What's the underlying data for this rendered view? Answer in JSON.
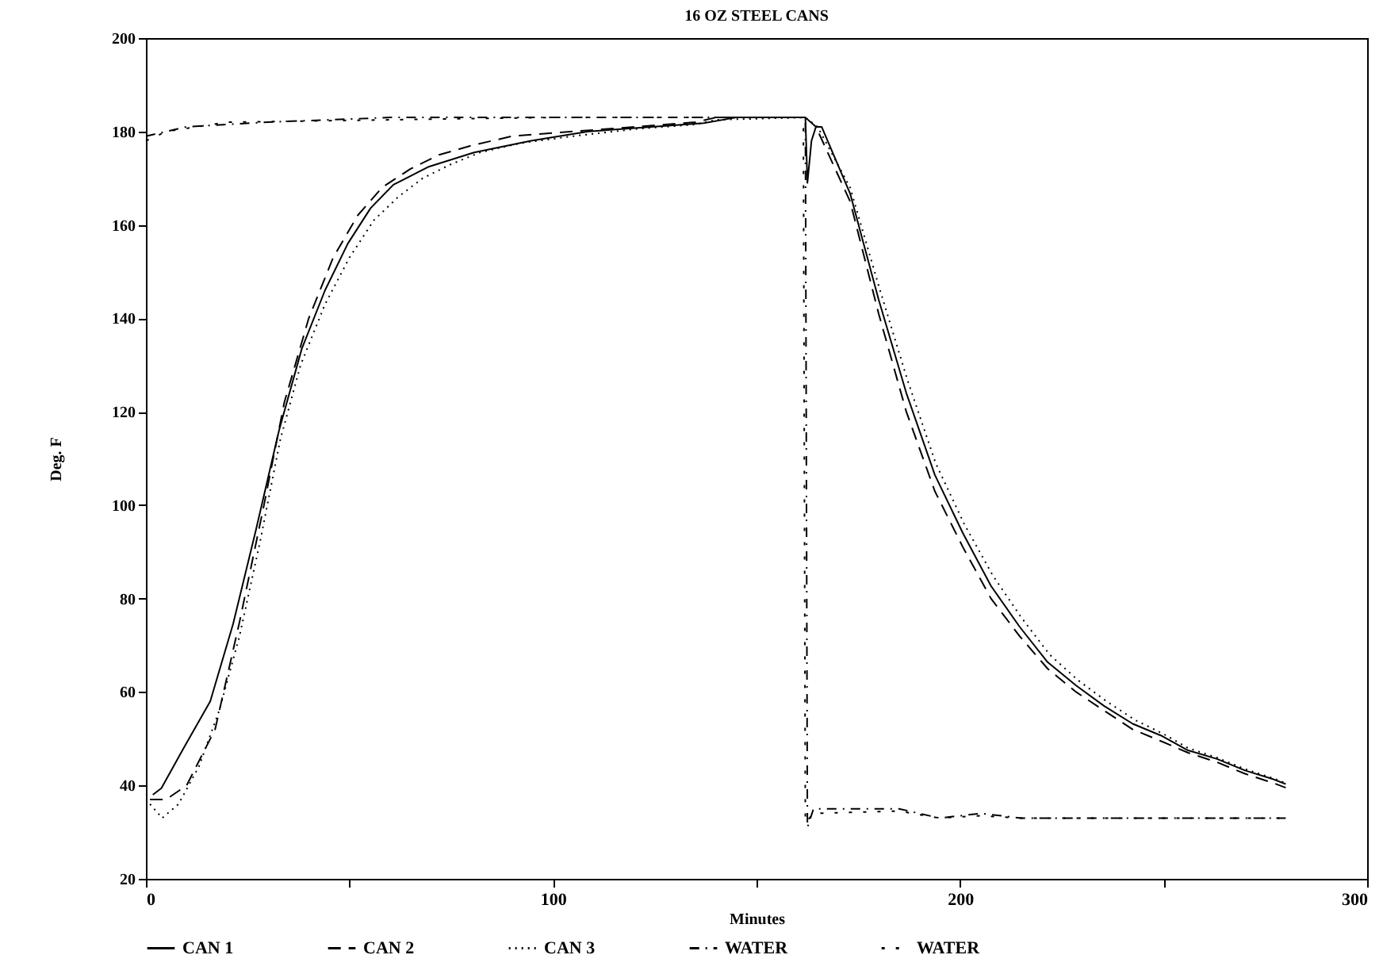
{
  "chart_data": {
    "type": "line",
    "title": "16 OZ STEEL CANS",
    "xlabel": "Minutes",
    "ylabel": "Deg. F",
    "xlim": [
      0,
      300
    ],
    "xticks": [
      0,
      {
        "value": 50,
        "label": null
      },
      100,
      {
        "value": 150,
        "label": null
      },
      200,
      {
        "value": 250,
        "label": null
      },
      300
    ],
    "ylim": [
      20,
      200
    ],
    "yticks": [
      20,
      40,
      60,
      80,
      100,
      120,
      140,
      160,
      180,
      200
    ],
    "grid": false,
    "legend": "bottom",
    "marker": "none",
    "series": [
      {
        "name": "CAN 1",
        "color": "#000000",
        "line_style": "solid",
        "x": [
          1.7,
          3.8,
          9.4,
          15.8,
          21.4,
          27,
          32.7,
          38.3,
          44,
          49.6,
          55.2,
          60.8,
          69.3,
          80.6,
          94.6,
          108.7,
          137,
          145,
          162,
          162.5,
          163.5,
          164.6,
          166,
          173,
          180,
          186.8,
          193.8,
          200.7,
          207.6,
          214.6,
          221.5,
          228.5,
          235.4,
          242.4,
          249.3,
          256,
          263,
          270,
          277,
          280
        ],
        "values": [
          38,
          39.4,
          48.2,
          58,
          74.5,
          94.6,
          116,
          133.5,
          146,
          156,
          163.6,
          168.6,
          172.4,
          175.5,
          178,
          180,
          181.8,
          183,
          183,
          169,
          178,
          181,
          181,
          166.7,
          144,
          124,
          106.5,
          94,
          82.7,
          74,
          66.4,
          61.4,
          57,
          53.2,
          50.7,
          47.5,
          45.7,
          43.2,
          41.3,
          40.3
        ]
      },
      {
        "name": "CAN 2",
        "color": "#000000",
        "line_style": "dashed",
        "x": [
          1,
          5,
          10,
          17,
          23,
          29,
          34,
          40,
          46,
          52,
          58,
          65,
          72,
          80,
          90,
          105,
          120,
          135,
          140,
          162,
          164.6,
          173,
          180,
          186.8,
          193.8,
          200.7,
          207.6,
          214.6,
          221.5,
          228.5,
          235.4,
          242.4,
          249.3,
          256,
          263,
          270,
          277,
          280
        ],
        "values": [
          37,
          37,
          40,
          52,
          75,
          100,
          122,
          140,
          153,
          162,
          168,
          172,
          175,
          177,
          179,
          180,
          181,
          182,
          183,
          183,
          181,
          165,
          141,
          120,
          103,
          91,
          80,
          72,
          65,
          60,
          56,
          52,
          49.5,
          47,
          45,
          42.5,
          40.5,
          39.5
        ]
      },
      {
        "name": "CAN 3",
        "color": "#000000",
        "line_style": "dotted",
        "x": [
          1,
          4,
          8,
          13,
          18,
          23,
          28,
          33,
          38,
          44,
          50,
          56,
          62,
          68,
          75,
          82,
          92,
          105,
          120,
          135,
          140,
          162,
          165,
          173,
          180,
          187,
          194,
          201,
          208,
          215,
          222,
          229,
          236,
          243,
          250,
          256,
          263,
          270,
          277,
          280
        ],
        "values": [
          36,
          33,
          36,
          44,
          56,
          72,
          92,
          114,
          130,
          143,
          153,
          161,
          166,
          170,
          173,
          175.5,
          177.5,
          179,
          180.5,
          181.5,
          182.5,
          183,
          181,
          168,
          147,
          127,
          109,
          96,
          85,
          76,
          68,
          62.5,
          58,
          54,
          51,
          48,
          46,
          43.5,
          41.5,
          40.5
        ]
      },
      {
        "name": "WATER",
        "color": "#000000",
        "line_style": "dashdot",
        "x": [
          0,
          10,
          30,
          60,
          100,
          162,
          162.5,
          164,
          185,
          195,
          205,
          215,
          280
        ],
        "values": [
          179,
          181,
          182,
          183,
          183,
          183,
          31,
          35,
          35,
          33,
          34,
          33,
          33
        ]
      },
      {
        "name": "WATER",
        "color": "#000000",
        "line_style": "sparse",
        "x": [
          0,
          5,
          20,
          60,
          100,
          161.5,
          162,
          164,
          185,
          195,
          205,
          215,
          280
        ],
        "values": [
          178,
          180,
          182,
          182.5,
          183,
          183,
          32,
          34,
          34.5,
          33,
          33.5,
          33,
          33
        ]
      }
    ]
  }
}
